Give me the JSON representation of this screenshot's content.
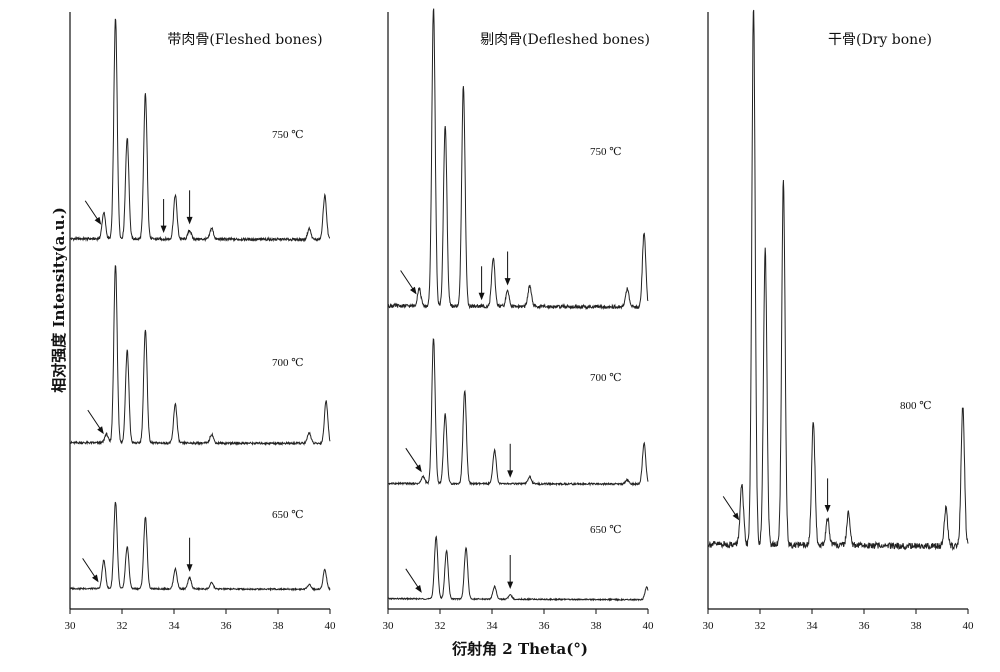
{
  "chart_data": {
    "type": "line",
    "xlabel": "衍射角 2 Theta(°)",
    "ylabel": "相对强度 Intensity(a.u.)",
    "xlim": [
      30,
      40
    ],
    "xticks": [
      30,
      32,
      34,
      36,
      38,
      40
    ],
    "xtick_labels": [
      "30",
      "32",
      "34",
      "36",
      "38",
      "40"
    ],
    "grid": false,
    "panels": [
      {
        "title": "带肉骨(Fleshed bones)",
        "traces": [
          {
            "label": "750 ℃",
            "baseline": 0.02,
            "peaks": [
              [
                31.3,
                0.12
              ],
              [
                31.75,
                1.0
              ],
              [
                32.2,
                0.46
              ],
              [
                32.9,
                0.66
              ],
              [
                34.05,
                0.2
              ],
              [
                34.6,
                0.04
              ],
              [
                35.45,
                0.05
              ],
              [
                39.2,
                0.05
              ],
              [
                39.8,
                0.2
              ]
            ],
            "arrows": [
              31.2,
              33.6,
              34.6
            ]
          },
          {
            "label": "700 ℃",
            "baseline": 0.02,
            "peaks": [
              [
                31.4,
                0.05
              ],
              [
                31.75,
                1.0
              ],
              [
                32.2,
                0.52
              ],
              [
                32.9,
                0.64
              ],
              [
                34.05,
                0.22
              ],
              [
                35.45,
                0.05
              ],
              [
                39.2,
                0.06
              ],
              [
                39.85,
                0.24
              ]
            ],
            "arrows": [
              31.3
            ]
          },
          {
            "label": "650 ℃",
            "baseline": 0.03,
            "peaks": [
              [
                31.3,
                0.23
              ],
              [
                31.75,
                0.7
              ],
              [
                32.2,
                0.34
              ],
              [
                32.9,
                0.58
              ],
              [
                34.05,
                0.16
              ],
              [
                34.6,
                0.09
              ],
              [
                35.45,
                0.05
              ],
              [
                39.2,
                0.04
              ],
              [
                39.8,
                0.16
              ]
            ],
            "arrows": [
              31.1,
              34.6
            ]
          }
        ]
      },
      {
        "title": "剔肉骨(Defleshed bones)",
        "traces": [
          {
            "label": "750 ℃",
            "baseline": 0.02,
            "peaks": [
              [
                31.2,
                0.06
              ],
              [
                31.75,
                1.0
              ],
              [
                32.2,
                0.61
              ],
              [
                32.9,
                0.74
              ],
              [
                34.05,
                0.16
              ],
              [
                34.6,
                0.05
              ],
              [
                35.45,
                0.07
              ],
              [
                39.2,
                0.06
              ],
              [
                39.85,
                0.25
              ]
            ],
            "arrows": [
              31.1,
              33.6,
              34.6
            ]
          },
          {
            "label": "700 ℃",
            "baseline": 0.02,
            "peaks": [
              [
                31.35,
                0.05
              ],
              [
                31.75,
                1.0
              ],
              [
                32.2,
                0.48
              ],
              [
                32.95,
                0.64
              ],
              [
                34.1,
                0.23
              ],
              [
                35.45,
                0.05
              ],
              [
                39.2,
                0.03
              ],
              [
                39.85,
                0.28
              ]
            ],
            "arrows": [
              31.3,
              34.7
            ]
          },
          {
            "label": "650 ℃",
            "baseline": 0.05,
            "peaks": [
              [
                31.85,
                0.59
              ],
              [
                32.25,
                0.46
              ],
              [
                33.0,
                0.49
              ],
              [
                34.1,
                0.12
              ],
              [
                34.7,
                0.04
              ],
              [
                39.95,
                0.12
              ]
            ],
            "arrows": [
              31.3,
              34.7
            ]
          }
        ]
      },
      {
        "title": "干骨(Dry bone)",
        "traces": [
          {
            "label": "800 ℃",
            "baseline": 0.02,
            "peaks": [
              [
                31.3,
                0.11
              ],
              [
                31.75,
                1.0
              ],
              [
                32.2,
                0.55
              ],
              [
                32.9,
                0.68
              ],
              [
                34.05,
                0.23
              ],
              [
                34.6,
                0.05
              ],
              [
                35.4,
                0.06
              ],
              [
                39.15,
                0.07
              ],
              [
                39.8,
                0.26
              ]
            ],
            "arrows": [
              31.2,
              34.6
            ]
          }
        ]
      }
    ]
  }
}
